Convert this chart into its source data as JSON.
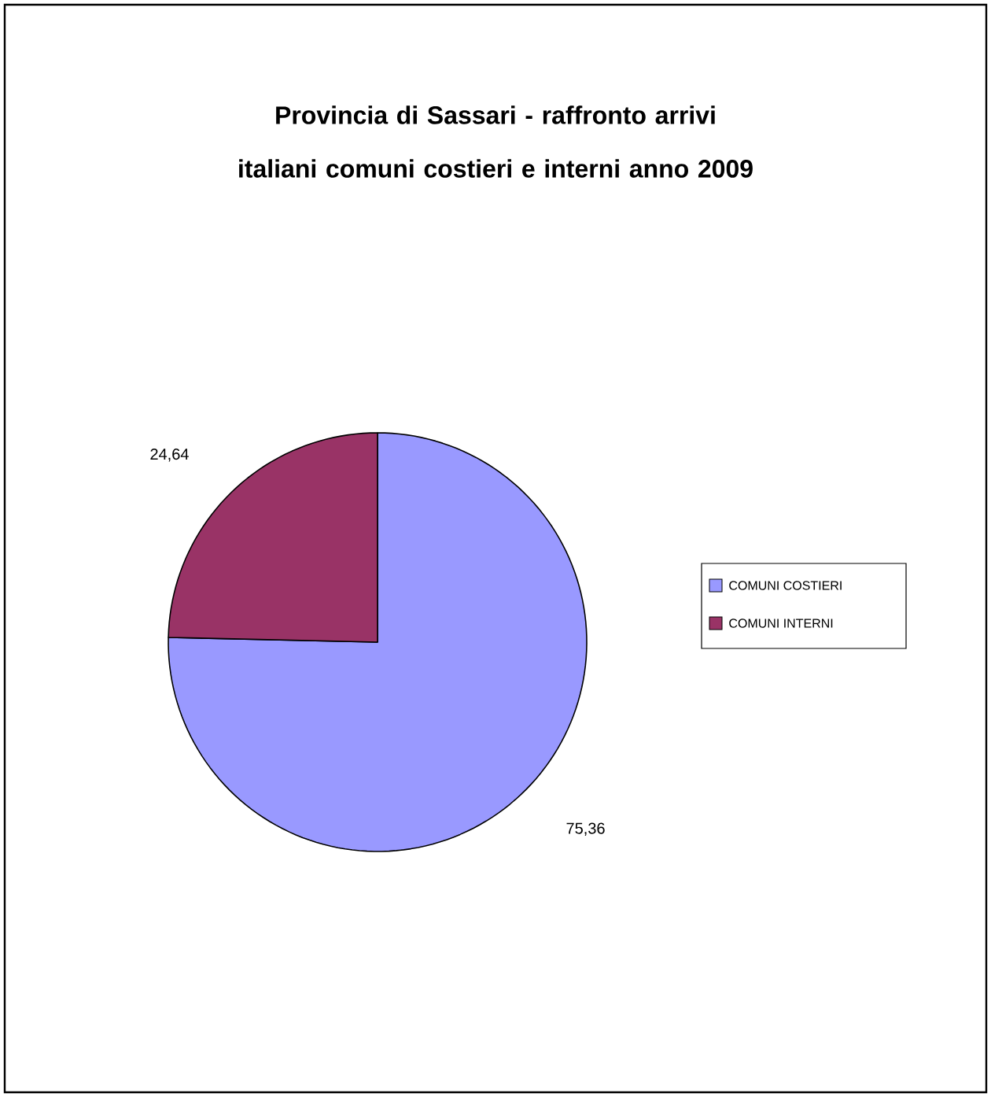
{
  "chart_data": {
    "type": "pie",
    "title": "Provincia di Sassari - raffronto arrivi italiani comuni costieri e interni anno 2009",
    "categories": [
      "COMUNI COSTIERI",
      "COMUNI INTERNI"
    ],
    "values": [
      75.36,
      24.64
    ],
    "value_labels": [
      "75,36",
      "24,64"
    ],
    "colors": [
      "#9999ff",
      "#993366"
    ],
    "legend": "right"
  }
}
